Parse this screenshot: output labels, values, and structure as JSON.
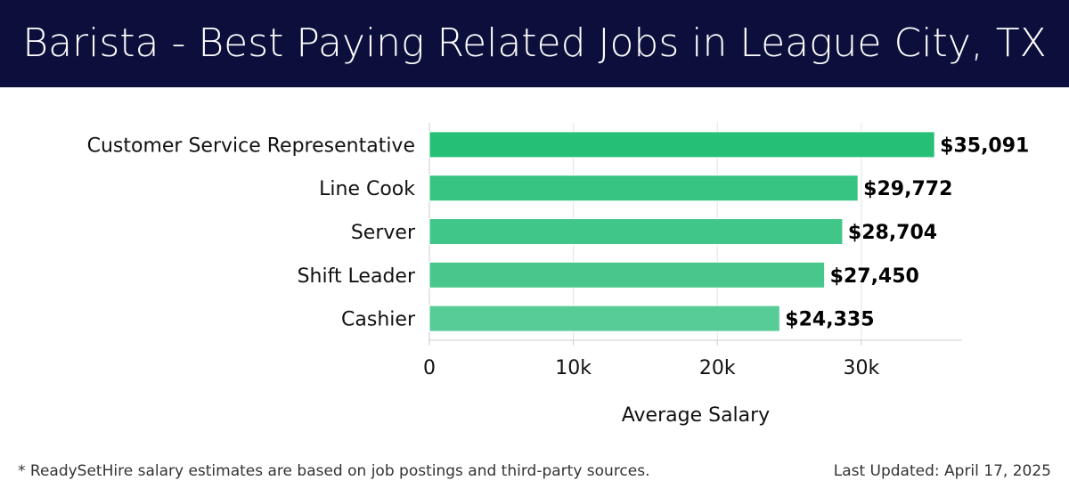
{
  "header": {
    "title": "Barista - Best Paying Related Jobs in League City, TX"
  },
  "chart_data": {
    "type": "bar",
    "orientation": "horizontal",
    "categories": [
      "Customer Service Representative",
      "Line Cook",
      "Server",
      "Shift Leader",
      "Cashier"
    ],
    "values": [
      35091,
      29772,
      28704,
      27450,
      24335
    ],
    "value_labels": [
      "$35,091",
      "$29,772",
      "$28,704",
      "$27,450",
      "$24,335"
    ],
    "xlabel": "Average Salary",
    "ylabel": "",
    "xlim": [
      0,
      37000
    ],
    "ticks": [
      0,
      10000,
      20000,
      30000
    ],
    "tick_labels": [
      "0",
      "10k",
      "20k",
      "30k"
    ],
    "grid": true,
    "legend": "none",
    "colors": [
      "#25bf76",
      "#37c482",
      "#40c688",
      "#47c78c",
      "#57cc96"
    ]
  },
  "footer": {
    "note": "* ReadySetHire salary estimates are based on job postings and third-party sources.",
    "updated": "Last Updated: April 17, 2025"
  }
}
